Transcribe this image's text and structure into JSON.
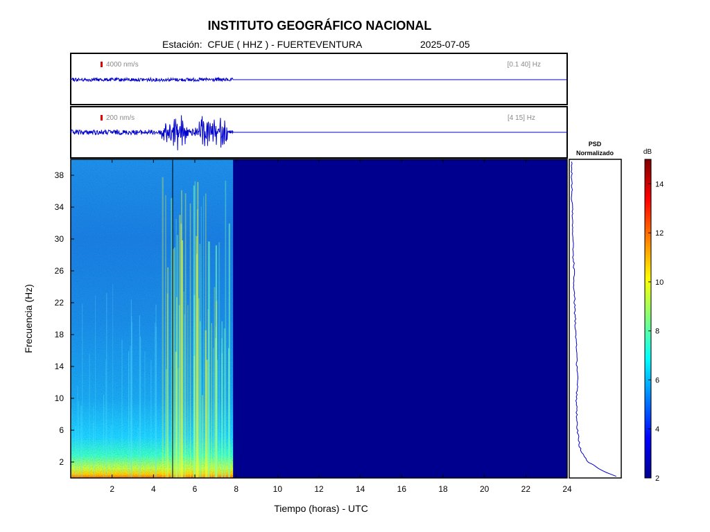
{
  "header": {
    "title": "INSTITUTO GEOGRÁFICO NACIONAL",
    "station_line": "Estación:  CFUE ( HHZ ) - FUERTEVENTURA",
    "date": "2025-07-05"
  },
  "traces": [
    {
      "scale_label": "4000 nm/s",
      "band_label": "[0.1 40] Hz",
      "scale_color": "#e00000"
    },
    {
      "scale_label": "200 nm/s",
      "band_label": "[4 15] Hz",
      "scale_color": "#e00000"
    }
  ],
  "psd_panel": {
    "title_line1": "PSD",
    "title_line2": "Normalizado"
  },
  "colorbar": {
    "unit": "dB",
    "ticks": [
      "2",
      "4",
      "6",
      "8",
      "10",
      "12",
      "14"
    ],
    "range": [
      2,
      15
    ],
    "colormap": "jet"
  },
  "chart_data": {
    "type": "heatmap",
    "title": "INSTITUTO GEOGRÁFICO NACIONAL",
    "subtitle": "Estación:  CFUE ( HHZ ) - FUERTEVENTURA",
    "xlabel": "Tiempo (horas) - UTC",
    "ylabel": "Frecuencia  (Hz)",
    "xlim": [
      0,
      24
    ],
    "ylim": [
      0,
      40
    ],
    "x_ticks": [
      "2",
      "4",
      "6",
      "8",
      "10",
      "12",
      "14",
      "16",
      "18",
      "20",
      "22",
      "24"
    ],
    "y_ticks": [
      "2",
      "6",
      "10",
      "14",
      "18",
      "22",
      "26",
      "30",
      "34",
      "38"
    ],
    "data_end_hour": 7.85,
    "empty_value_db": 2,
    "colors": {
      "trace": "#0000cc",
      "empty": "#00008f"
    },
    "psd_profile": {
      "freq_hz": [
        0,
        1,
        2,
        3,
        4,
        5,
        6,
        8,
        10,
        12,
        14,
        16,
        18,
        20,
        22,
        24,
        26,
        28,
        30,
        32,
        34,
        36,
        38,
        40
      ],
      "normalized": [
        1.0,
        0.62,
        0.36,
        0.24,
        0.18,
        0.16,
        0.14,
        0.12,
        0.12,
        0.14,
        0.13,
        0.12,
        0.1,
        0.09,
        0.08,
        0.07,
        0.07,
        0.05,
        0.04,
        0.04,
        0.03,
        0.03,
        0.02,
        0.02
      ]
    }
  }
}
